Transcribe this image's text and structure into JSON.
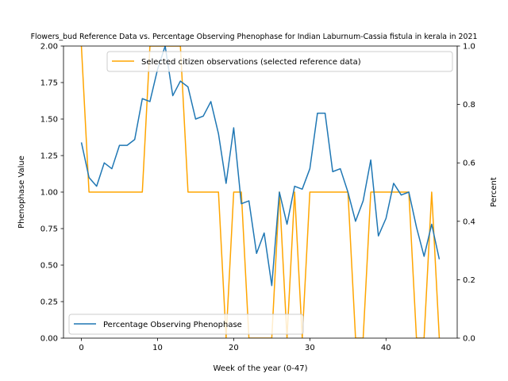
{
  "chart_data": {
    "type": "line",
    "title": "Flowers_bud Reference Data vs. Percentage Observing Phenophase for Indian Laburnum-Cassia fistula in kerala in 2021",
    "xlabel": "Week of the year (0-47)",
    "ylabel_left": "Phenophase Value",
    "ylabel_right": "Percent",
    "xlim": [
      -2.35,
      49.35
    ],
    "ylim_left": [
      0,
      2.0
    ],
    "ylim_right": [
      0,
      1.0
    ],
    "x_ticks": [
      "0",
      "10",
      "20",
      "30",
      "40"
    ],
    "y_ticks_left": [
      "0.00",
      "0.25",
      "0.50",
      "0.75",
      "1.00",
      "1.25",
      "1.50",
      "1.75",
      "2.00"
    ],
    "y_ticks_right": [
      "0.0",
      "0.2",
      "0.4",
      "0.6",
      "0.8",
      "1.0"
    ],
    "series": [
      {
        "name": "Selected citizen observations (selected reference data)",
        "axis": "left",
        "color": "#ffa500",
        "x": [
          0,
          1,
          2,
          3,
          4,
          5,
          6,
          7,
          8,
          9,
          10,
          11,
          12,
          13,
          14,
          15,
          16,
          17,
          18,
          19,
          20,
          21,
          22,
          23,
          24,
          25,
          26,
          27,
          28,
          29,
          30,
          31,
          32,
          33,
          34,
          35,
          36,
          37,
          38,
          39,
          40,
          41,
          42,
          43,
          44,
          45,
          46,
          47
        ],
        "values": [
          2,
          1,
          1,
          1,
          1,
          1,
          1,
          1,
          1,
          2,
          2,
          2,
          2,
          2,
          1,
          1,
          1,
          1,
          1,
          0,
          1,
          1,
          0,
          0,
          0,
          0,
          1,
          0,
          1,
          0,
          1,
          1,
          1,
          1,
          1,
          1,
          0,
          0,
          1,
          1,
          1,
          1,
          1,
          1,
          0,
          0,
          1,
          0
        ]
      },
      {
        "name": "Percentage Observing Phenophase",
        "axis": "right",
        "color": "#1f77b4",
        "x": [
          0,
          1,
          2,
          3,
          4,
          5,
          6,
          7,
          8,
          9,
          10,
          11,
          12,
          13,
          14,
          15,
          16,
          17,
          18,
          19,
          20,
          21,
          22,
          23,
          24,
          25,
          26,
          27,
          28,
          29,
          30,
          31,
          32,
          33,
          34,
          35,
          36,
          37,
          38,
          39,
          40,
          41,
          42,
          43,
          44,
          45,
          46,
          47
        ],
        "values": [
          0.67,
          0.55,
          0.52,
          0.6,
          0.58,
          0.66,
          0.66,
          0.68,
          0.82,
          0.81,
          0.92,
          1.0,
          0.83,
          0.88,
          0.86,
          0.75,
          0.76,
          0.81,
          0.7,
          0.53,
          0.72,
          0.46,
          0.47,
          0.29,
          0.36,
          0.18,
          0.5,
          0.39,
          0.52,
          0.51,
          0.58,
          0.77,
          0.77,
          0.57,
          0.58,
          0.5,
          0.4,
          0.47,
          0.61,
          0.35,
          0.41,
          0.53,
          0.49,
          0.5,
          0.38,
          0.28,
          0.39,
          0.27
        ]
      }
    ],
    "legend_upper": "top-right",
    "legend_lower": "bottom-left",
    "grid": false
  }
}
